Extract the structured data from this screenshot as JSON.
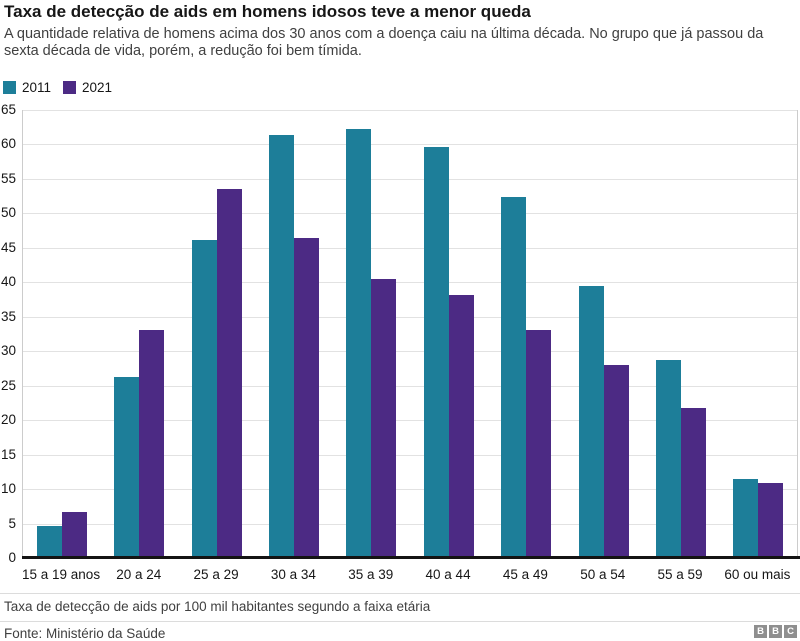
{
  "header": {
    "title": "Taxa de detecção de aids em homens idosos teve a menor queda",
    "subtitle": "A quantidade relativa de homens acima dos 30 anos com a doença caiu na última década. No grupo que já passou da sexta década de vida, porém, a redução foi bem tímida."
  },
  "legend": [
    {
      "label": "2011",
      "color": "#1d7e99"
    },
    {
      "label": "2021",
      "color": "#4c2a84"
    }
  ],
  "chart_data": {
    "type": "bar",
    "title": "Taxa de detecção de aids em homens idosos teve a menor queda",
    "categories": [
      "15 a 19 anos",
      "20 a 24",
      "25 a 29",
      "30 a 34",
      "35 a 39",
      "40 a 44",
      "45 a 49",
      "50 a 54",
      "55 a 59",
      "60 ou mais"
    ],
    "series": [
      {
        "name": "2011",
        "color": "#1d7e99",
        "values": [
          4.6,
          26.2,
          46.2,
          61.4,
          62.2,
          59.6,
          52.4,
          39.5,
          28.8,
          11.5
        ]
      },
      {
        "name": "2021",
        "color": "#4c2a84",
        "values": [
          6.7,
          33.1,
          53.6,
          46.5,
          40.5,
          38.1,
          33.1,
          28.0,
          21.7,
          10.9
        ]
      }
    ],
    "xlabel": "",
    "ylabel": "",
    "ylim": [
      0,
      65
    ],
    "ytick_step": 5,
    "yticks": [
      0,
      5,
      10,
      15,
      20,
      25,
      30,
      35,
      40,
      45,
      50,
      55,
      60,
      65
    ],
    "grid": true,
    "legend_position": "top-left",
    "gridline_color": "#e2e2e2",
    "axis_color": "#141414"
  },
  "footer": {
    "caption": "Taxa de detecção de aids por 100 mil habitantes segundo a faixa etária",
    "source": "Fonte: Ministério da Saúde",
    "logo_letters": [
      "B",
      "B",
      "C"
    ]
  }
}
